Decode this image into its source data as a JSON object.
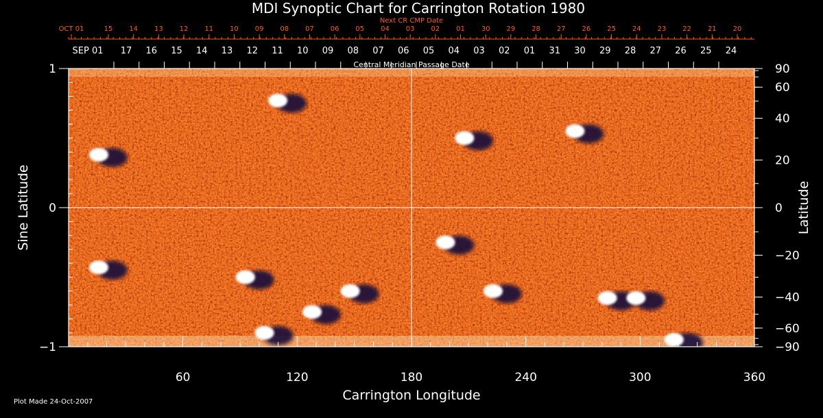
{
  "chart_data": {
    "type": "heatmap",
    "title": "MDI Synoptic Chart for Carrington Rotation 1980",
    "xlabel": "Carrington Longitude",
    "ylabel_left": "Sine Latitude",
    "ylabel_right": "Latitude",
    "xlim": [
      0,
      360
    ],
    "ylim": [
      -1,
      1
    ],
    "x_ticks": [
      60,
      120,
      180,
      240,
      300,
      360
    ],
    "y_ticks_left": [
      {
        "value": 1,
        "label": "1"
      },
      {
        "value": 0,
        "label": "0"
      },
      {
        "value": -1,
        "label": "−1"
      }
    ],
    "y_ticks_right": [
      "90",
      "60",
      "40",
      "20",
      "0",
      "−20",
      "−40",
      "−60",
      "−90"
    ],
    "top_axis_red_label": "Next CR CMP Date",
    "top_axis_red_ticks": [
      "OCT 01",
      "15",
      "14",
      "13",
      "12",
      "11",
      "10",
      "09",
      "08",
      "07",
      "06",
      "05",
      "04",
      "03",
      "02",
      "01",
      "30",
      "29",
      "28",
      "27",
      "26",
      "25",
      "24",
      "23",
      "22",
      "21",
      "20"
    ],
    "top_axis_white_label": "Central Meridian Passage Date",
    "top_axis_white_ticks": [
      "SEP 01",
      "17",
      "16",
      "15",
      "14",
      "13",
      "12",
      "11",
      "10",
      "09",
      "08",
      "07",
      "06",
      "05",
      "04",
      "03",
      "02",
      "01",
      "31",
      "30",
      "29",
      "28",
      "27",
      "26",
      "25",
      "24"
    ],
    "color_scale": [
      "#1a1040",
      "#c81e00",
      "#ff6a00",
      "#ffb000",
      "#ffffff"
    ],
    "active_regions": [
      {
        "lon": 18,
        "slat": 0.38,
        "polarity": "mixed"
      },
      {
        "lon": 112,
        "slat": 0.77,
        "polarity": "mixed"
      },
      {
        "lon": 210,
        "slat": 0.5,
        "polarity": "mixed"
      },
      {
        "lon": 268,
        "slat": 0.55,
        "polarity": "mixed"
      },
      {
        "lon": 18,
        "slat": -0.43,
        "polarity": "mixed"
      },
      {
        "lon": 95,
        "slat": -0.5,
        "polarity": "mixed"
      },
      {
        "lon": 105,
        "slat": -0.9,
        "polarity": "mixed"
      },
      {
        "lon": 130,
        "slat": -0.75,
        "polarity": "mixed"
      },
      {
        "lon": 150,
        "slat": -0.6,
        "polarity": "mixed"
      },
      {
        "lon": 200,
        "slat": -0.25,
        "polarity": "mixed"
      },
      {
        "lon": 225,
        "slat": -0.6,
        "polarity": "mixed"
      },
      {
        "lon": 285,
        "slat": -0.65,
        "polarity": "mixed"
      },
      {
        "lon": 300,
        "slat": -0.65,
        "polarity": "mixed"
      },
      {
        "lon": 320,
        "slat": -0.95,
        "polarity": "mixed"
      }
    ]
  },
  "footer": {
    "plot_made": "Plot Made 24-Oct-2007"
  }
}
